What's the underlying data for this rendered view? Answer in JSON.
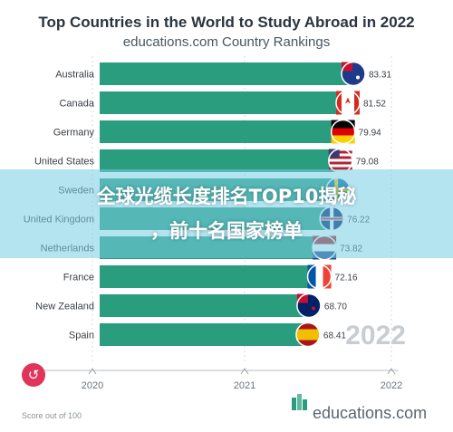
{
  "chart_data": {
    "type": "bar",
    "title": "Top Countries in the World to Study Abroad in 2022",
    "subtitle": "educations.com Country Rankings",
    "categories": [
      "Australia",
      "Canada",
      "Germany",
      "United States",
      "Sweden",
      "United Kingdom",
      "Netherlands",
      "France",
      "New Zealand",
      "Spain"
    ],
    "values": [
      83.31,
      81.52,
      79.94,
      79.08,
      78.3,
      76.22,
      73.82,
      72.16,
      68.7,
      68.41
    ],
    "value_labels": [
      "83.31",
      "81.52",
      "79.94",
      "79.08",
      "",
      "76.22",
      "73.82",
      "72.16",
      "68.70",
      "68.41"
    ],
    "x_ticks": [
      "2020",
      "2021",
      "2022"
    ],
    "year_label": "2022",
    "note": "Score out of 100",
    "bar_color": "#2a9d7f",
    "xlim": [
      0,
      100
    ]
  },
  "overlay": {
    "line1": "全球光缆长度排名TOP10揭秘",
    "line2": "，前十名国家榜单"
  },
  "brand": {
    "name": "educations.com",
    "icon": "educations-logo-icon"
  },
  "controls": {
    "replay_icon": "replay-icon"
  },
  "flags": [
    "australia-flag-icon",
    "canada-flag-icon",
    "germany-flag-icon",
    "usa-flag-icon",
    "sweden-flag-icon",
    "uk-flag-icon",
    "netherlands-flag-icon",
    "france-flag-icon",
    "new-zealand-flag-icon",
    "spain-flag-icon"
  ]
}
